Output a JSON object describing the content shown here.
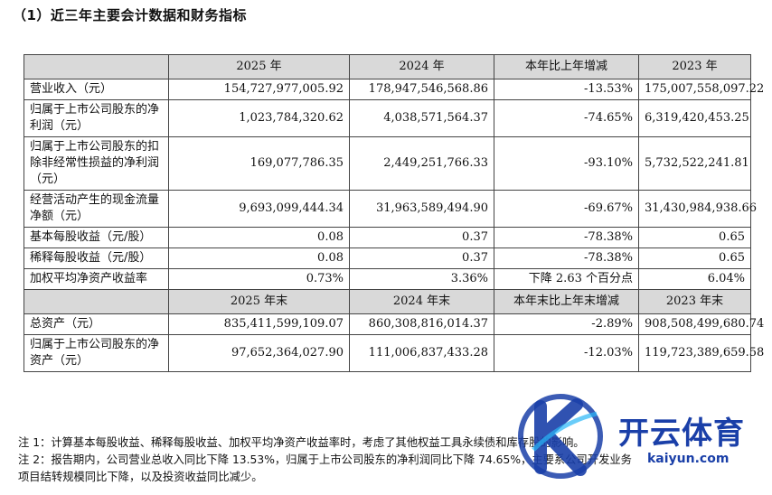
{
  "section_title": "（1）近三年主要会计数据和财务指标",
  "header1": [
    "",
    "2025 年",
    "2024 年",
    "本年比上年增减",
    "2023 年"
  ],
  "rows1": [
    {
      "label": "营业收入（元）",
      "v2025": "154,727,977,005.92",
      "v2024": "178,947,546,568.86",
      "change": "-13.53%",
      "v2023": "175,007,558,097.22"
    },
    {
      "label": "归属于上市公司股东的净利润（元）",
      "v2025": "1,023,784,320.62",
      "v2024": "4,038,571,564.37",
      "change": "-74.65%",
      "v2023": "6,319,420,453.25"
    },
    {
      "label": "归属于上市公司股东的扣除非经常性损益的净利润（元）",
      "v2025": "169,077,786.35",
      "v2024": "2,449,251,766.33",
      "change": "-93.10%",
      "v2023": "5,732,522,241.81"
    },
    {
      "label": "经营活动产生的现金流量净额（元）",
      "v2025": "9,693,099,444.34",
      "v2024": "31,963,589,494.90",
      "change": "-69.67%",
      "v2023": "31,430,984,938.66"
    },
    {
      "label": "基本每股收益（元/股）",
      "v2025": "0.08",
      "v2024": "0.37",
      "change": "-78.38%",
      "v2023": "0.65"
    },
    {
      "label": "稀释每股收益（元/股）",
      "v2025": "0.08",
      "v2024": "0.37",
      "change": "-78.38%",
      "v2023": "0.65"
    },
    {
      "label": "加权平均净资产收益率",
      "v2025": "0.73%",
      "v2024": "3.36%",
      "change": "下降 2.63 个百分点",
      "v2023": "6.04%"
    }
  ],
  "header2": [
    "",
    "2025 年末",
    "2024 年末",
    "本年末比上年末增减",
    "2023 年末"
  ],
  "rows2": [
    {
      "label": "总资产（元）",
      "v2025": "835,411,599,109.07",
      "v2024": "860,308,816,014.37",
      "change": "-2.89%",
      "v2023": "908,508,499,680.74"
    },
    {
      "label": "归属于上市公司股东的净资产（元）",
      "v2025": "97,652,364,027.90",
      "v2024": "111,006,837,433.28",
      "change": "-12.03%",
      "v2023": "119,723,389,659.58"
    }
  ],
  "notes": [
    "注 1：计算基本每股收益、稀释每股收益、加权平均净资产收益率时，考虑了其他权益工具永续债和库存股的影响。",
    "注 2：报告期内，公司营业总收入同比下降 13.53%，归属于上市公司股东的净利润同比下降 74.65%，主要系公司开发业务",
    "项目结转规模同比下降，以及投资收益同比减少。"
  ],
  "watermark": {
    "name": "开云体育",
    "url": "kaiyun.com",
    "color": "#1a3fa8"
  }
}
